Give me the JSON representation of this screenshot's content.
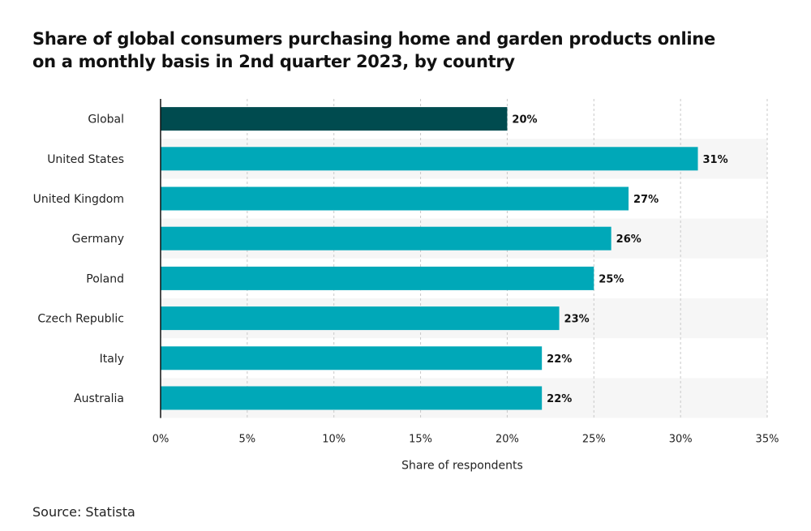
{
  "title_lines": [
    "Share of global consumers purchasing home and garden products online",
    "on a monthly basis in 2nd quarter 2023, by country"
  ],
  "source": "Source: Statista",
  "colors": {
    "highlight": "#004b4f",
    "bar": "#00a8b8",
    "band": "#f6f6f6",
    "grid": "#c8c8c8",
    "axis": "#111111"
  },
  "chart_data": {
    "type": "bar",
    "orientation": "horizontal",
    "title": "Share of global consumers purchasing home and garden products online on a monthly basis in 2nd quarter 2023, by country",
    "categories": [
      "Global",
      "United States",
      "United Kingdom",
      "Germany",
      "Poland",
      "Czech Republic",
      "Italy",
      "Australia"
    ],
    "values": [
      20,
      31,
      27,
      26,
      25,
      23,
      22,
      22
    ],
    "value_labels": [
      "20%",
      "31%",
      "27%",
      "26%",
      "25%",
      "23%",
      "22%",
      "22%"
    ],
    "highlighted_category": "Global",
    "xlabel": "Share of respondents",
    "ylabel": "",
    "xlim": [
      0,
      35
    ],
    "xticks": [
      0,
      5,
      10,
      15,
      20,
      25,
      30,
      35
    ],
    "xtick_labels": [
      "0%",
      "5%",
      "10%",
      "15%",
      "20%",
      "25%",
      "30%",
      "35%"
    ],
    "grid": "vertical dashed",
    "legend": "none"
  }
}
